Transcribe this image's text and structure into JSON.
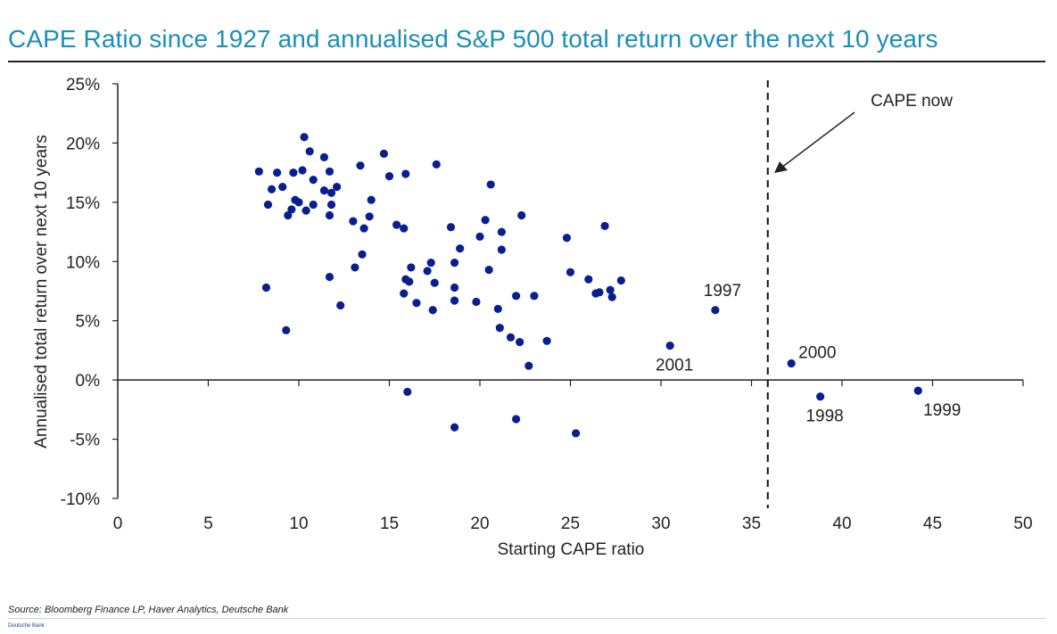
{
  "title": "CAPE Ratio since 1927 and annualised S&P 500 total return over the next 10 years",
  "source": "Source: Bloomberg Finance LP, Haver Analytics, Deutsche Bank",
  "footer_brand": "Deutsche Bank",
  "colors": {
    "title": "#1a8fb8",
    "points": "#0a1f8f",
    "axis": "#222222"
  },
  "chart_data": {
    "type": "scatter",
    "title": "CAPE Ratio since 1927 and annualised S&P 500 total return over the next 10 years",
    "xlabel": "Starting CAPE ratio",
    "ylabel": "Annualised total return over next 10 years",
    "xlim": [
      0,
      50
    ],
    "ylim": [
      -10,
      25
    ],
    "x_ticks": [
      0,
      5,
      10,
      15,
      20,
      25,
      30,
      35,
      40,
      45,
      50
    ],
    "x_tick_labels": [
      "0",
      "5",
      "10",
      "15",
      "20",
      "25",
      "30",
      "35",
      "40",
      "45",
      "50"
    ],
    "y_ticks": [
      25,
      20,
      15,
      10,
      5,
      0,
      -5,
      -10
    ],
    "y_tick_labels": [
      "25%",
      "20%",
      "15%",
      "10%",
      "5%",
      "0%",
      "-5%",
      "-10%"
    ],
    "grid": false,
    "reference_line": {
      "x": 35.9,
      "style": "dashed",
      "label": "CAPE now"
    },
    "annotations": [
      {
        "text": "1997",
        "x": 33.0,
        "y": 5.9,
        "position": "above"
      },
      {
        "text": "2001",
        "x": 30.5,
        "y": 2.9,
        "position": "below"
      },
      {
        "text": "2000",
        "x": 37.2,
        "y": 1.4,
        "position": "right"
      },
      {
        "text": "1998",
        "x": 38.8,
        "y": -1.4,
        "position": "below"
      },
      {
        "text": "1999",
        "x": 44.2,
        "y": -0.9,
        "position": "below"
      }
    ],
    "points": [
      [
        7.8,
        17.6
      ],
      [
        8.3,
        14.8
      ],
      [
        8.5,
        16.1
      ],
      [
        8.8,
        17.5
      ],
      [
        9.1,
        16.3
      ],
      [
        9.4,
        13.9
      ],
      [
        9.6,
        14.4
      ],
      [
        9.7,
        17.5
      ],
      [
        9.8,
        15.2
      ],
      [
        10.0,
        15.0
      ],
      [
        10.2,
        17.7
      ],
      [
        10.3,
        20.5
      ],
      [
        10.4,
        14.3
      ],
      [
        10.6,
        19.3
      ],
      [
        10.8,
        14.8
      ],
      [
        10.8,
        16.9
      ],
      [
        11.4,
        16.0
      ],
      [
        11.4,
        18.8
      ],
      [
        11.7,
        13.9
      ],
      [
        11.7,
        17.6
      ],
      [
        11.8,
        14.8
      ],
      [
        11.8,
        15.8
      ],
      [
        12.1,
        16.3
      ],
      [
        8.2,
        7.8
      ],
      [
        9.3,
        4.2
      ],
      [
        11.7,
        8.7
      ],
      [
        12.3,
        6.3
      ],
      [
        13.0,
        13.4
      ],
      [
        13.1,
        9.5
      ],
      [
        13.4,
        18.1
      ],
      [
        13.5,
        10.6
      ],
      [
        13.6,
        12.8
      ],
      [
        13.9,
        13.8
      ],
      [
        14.0,
        15.2
      ],
      [
        14.7,
        19.1
      ],
      [
        15.0,
        17.2
      ],
      [
        15.4,
        13.1
      ],
      [
        15.8,
        12.8
      ],
      [
        15.8,
        7.3
      ],
      [
        15.9,
        8.5
      ],
      [
        15.9,
        17.4
      ],
      [
        16.1,
        8.3
      ],
      [
        16.2,
        9.5
      ],
      [
        16.5,
        6.5
      ],
      [
        17.1,
        9.2
      ],
      [
        17.3,
        9.9
      ],
      [
        17.4,
        5.9
      ],
      [
        17.5,
        8.2
      ],
      [
        17.6,
        18.2
      ],
      [
        18.4,
        12.9
      ],
      [
        18.6,
        9.9
      ],
      [
        18.6,
        7.8
      ],
      [
        18.6,
        6.7
      ],
      [
        18.9,
        11.1
      ],
      [
        19.8,
        6.6
      ],
      [
        20.0,
        12.1
      ],
      [
        20.3,
        13.5
      ],
      [
        20.5,
        9.3
      ],
      [
        20.6,
        16.5
      ],
      [
        21.0,
        6.0
      ],
      [
        21.1,
        4.4
      ],
      [
        21.2,
        11.0
      ],
      [
        21.2,
        12.5
      ],
      [
        21.7,
        3.6
      ],
      [
        22.0,
        7.1
      ],
      [
        22.2,
        3.2
      ],
      [
        22.3,
        13.9
      ],
      [
        22.7,
        1.2
      ],
      [
        23.0,
        7.1
      ],
      [
        23.7,
        3.3
      ],
      [
        24.8,
        12.0
      ],
      [
        25.0,
        9.1
      ],
      [
        26.0,
        8.5
      ],
      [
        26.4,
        7.3
      ],
      [
        26.6,
        7.4
      ],
      [
        26.9,
        13.0
      ],
      [
        27.2,
        7.6
      ],
      [
        27.3,
        7.0
      ],
      [
        27.8,
        8.4
      ],
      [
        30.5,
        2.9
      ],
      [
        33.0,
        5.9
      ],
      [
        37.2,
        1.4
      ],
      [
        16.0,
        -1.0
      ],
      [
        18.6,
        -4.0
      ],
      [
        22.0,
        -3.3
      ],
      [
        25.3,
        -4.5
      ],
      [
        38.8,
        -1.4
      ],
      [
        44.2,
        -0.9
      ]
    ]
  }
}
